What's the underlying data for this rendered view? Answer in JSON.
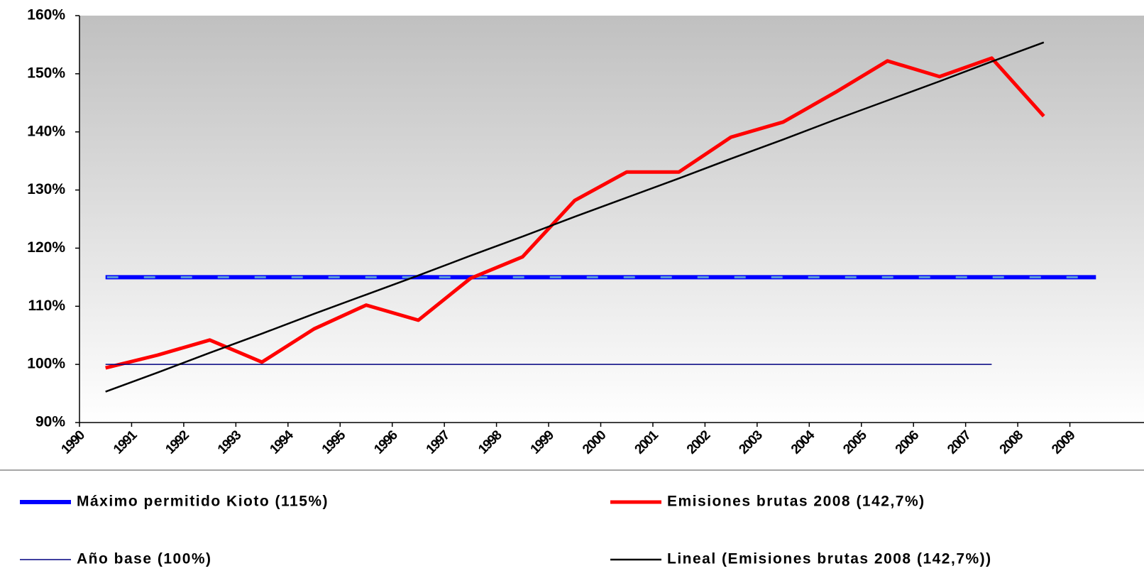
{
  "chart_data": {
    "type": "line",
    "categories": [
      "1990",
      "1991",
      "1992",
      "1993",
      "1994",
      "1995",
      "1996",
      "1997",
      "1998",
      "1999",
      "2000",
      "2001",
      "2002",
      "2003",
      "2004",
      "2005",
      "2006",
      "2007",
      "2008",
      "2009"
    ],
    "series": [
      {
        "name": "Máximo permitido Kioto (115%)",
        "color": "#0000ff",
        "values": [
          115,
          115,
          115,
          115,
          115,
          115,
          115,
          115,
          115,
          115,
          115,
          115,
          115,
          115,
          115,
          115,
          115,
          115,
          115,
          115
        ]
      },
      {
        "name": "Emisiones brutas 2008 (142,7%)",
        "color": "#ff0000",
        "values": [
          99.4,
          101.6,
          104.2,
          100.4,
          106.1,
          110.2,
          107.6,
          114.8,
          118.5,
          128.2,
          133.1,
          133.1,
          139.1,
          141.7,
          146.8,
          152.2,
          149.5,
          152.7,
          142.7,
          null
        ]
      },
      {
        "name": "Año base (100%)",
        "color": "#000080",
        "values": [
          100,
          100,
          100,
          100,
          100,
          100,
          100,
          100,
          100,
          100,
          100,
          100,
          100,
          100,
          100,
          100,
          100,
          100,
          null,
          null
        ]
      },
      {
        "name": "Lineal (Emisiones brutas 2008 (142,7%))",
        "color": "#000000",
        "values": [
          95.3,
          98.6,
          102.0,
          105.3,
          108.7,
          112.0,
          115.3,
          118.7,
          122.0,
          125.4,
          128.7,
          132.0,
          135.4,
          138.7,
          142.1,
          145.4,
          148.7,
          152.1,
          155.4,
          null
        ]
      }
    ],
    "ylim": [
      90,
      160
    ],
    "yticks": [
      {
        "value": 90,
        "label": "90%"
      },
      {
        "value": 100,
        "label": "100%"
      },
      {
        "value": 110,
        "label": "110%"
      },
      {
        "value": 120,
        "label": "120%"
      },
      {
        "value": 130,
        "label": "130%"
      },
      {
        "value": 140,
        "label": "140%"
      },
      {
        "value": 150,
        "label": "150%"
      },
      {
        "value": 160,
        "label": "160%"
      }
    ],
    "grid": false,
    "legend": "bottom"
  }
}
